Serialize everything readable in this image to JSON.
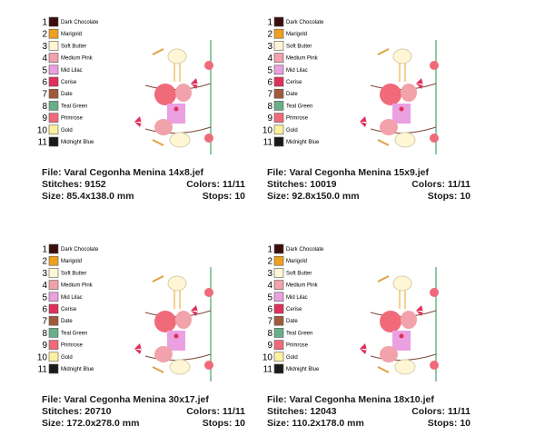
{
  "threads": [
    {
      "number": "1",
      "name": "Dark Chocolate",
      "color": "#3b0d0d"
    },
    {
      "number": "2",
      "name": "Marigold",
      "color": "#f0a020"
    },
    {
      "number": "3",
      "name": "Soft Butter",
      "color": "#fff6d6"
    },
    {
      "number": "4",
      "name": "Medium Pink",
      "color": "#f2a2aa"
    },
    {
      "number": "5",
      "name": "Mid Lilac",
      "color": "#eba0e2"
    },
    {
      "number": "6",
      "name": "Cerise",
      "color": "#e0305a"
    },
    {
      "number": "7",
      "name": "Date",
      "color": "#a25a3a"
    },
    {
      "number": "8",
      "name": "Teal Green",
      "color": "#6aae8a"
    },
    {
      "number": "9",
      "name": "Primrose",
      "color": "#f06a7a"
    },
    {
      "number": "10",
      "name": "Gold",
      "color": "#fff0a0"
    },
    {
      "number": "11",
      "name": "Midnight Blue",
      "color": "#1a1a1a"
    }
  ],
  "panels": [
    {
      "file": "File: Varal Cegonha Menina 14x8.jef",
      "stitches": "Stitches: 9152",
      "colors": "Colors: 11/11",
      "size": "Size: 85.4x138.0 mm",
      "stops": "Stops: 10"
    },
    {
      "file": "File: Varal Cegonha Menina 15x9.jef",
      "stitches": "Stitches: 10019",
      "colors": "Colors: 11/11",
      "size": "Size: 92.8x150.0 mm",
      "stops": "Stops: 10"
    },
    {
      "file": "File: Varal Cegonha Menina 30x17.jef",
      "stitches": "Stitches: 20710",
      "colors": "Colors: 11/11",
      "size": "Size: 172.0x278.0 mm",
      "stops": "Stops: 10"
    },
    {
      "file": "File: Varal Cegonha Menina 18x10.jef",
      "stitches": "Stitches: 12043",
      "colors": "Colors: 11/11",
      "size": "Size: 110.2x178.0 mm",
      "stops": "Stops: 10"
    }
  ]
}
